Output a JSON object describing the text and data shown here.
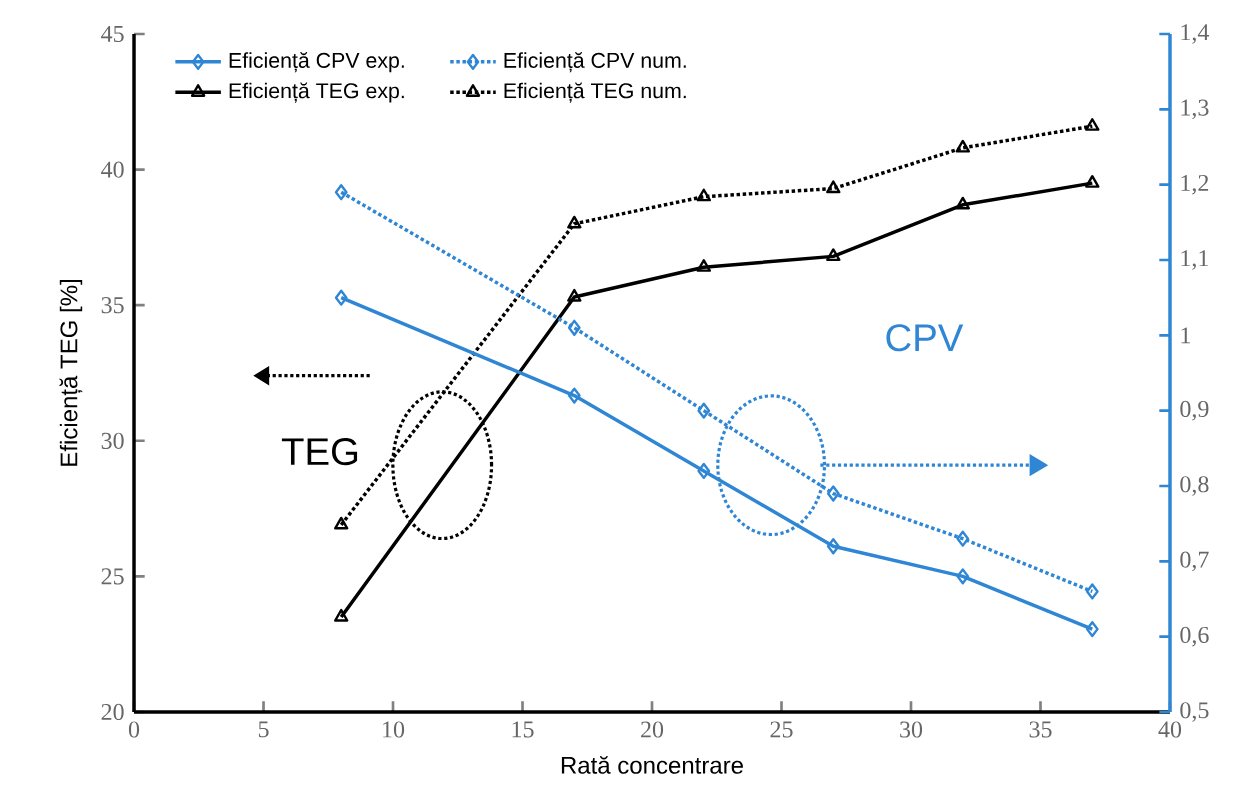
{
  "chart_data": {
    "type": "line",
    "xlabel": "Rată concentrare",
    "ylabel": "Eficiență TEG [%]",
    "x": [
      8,
      17,
      22,
      27,
      32,
      37
    ],
    "xlim": [
      0,
      40
    ],
    "xticks": [
      0,
      5,
      10,
      15,
      20,
      25,
      30,
      35,
      40
    ],
    "ylim": [
      20,
      45
    ],
    "yticks": [
      20,
      25,
      30,
      35,
      40,
      45
    ],
    "y2lim": [
      0.5,
      1.4
    ],
    "y2ticks": [
      {
        "value": 0.5,
        "label": "0,5"
      },
      {
        "value": 0.6,
        "label": "0,6"
      },
      {
        "value": 0.7,
        "label": "0,7"
      },
      {
        "value": 0.8,
        "label": "0,8"
      },
      {
        "value": 0.9,
        "label": "0,9"
      },
      {
        "value": 1,
        "label": "1"
      },
      {
        "value": 1.1,
        "label": "1,1"
      },
      {
        "value": 1.2,
        "label": "1,2"
      },
      {
        "value": 1.3,
        "label": "1,3"
      },
      {
        "value": 1.4,
        "label": "1,4"
      }
    ],
    "series": [
      {
        "name": "Eficiență CPV exp.",
        "color": "#2e86d4",
        "axis": "y2",
        "marker": "diamond",
        "line_style": "solid",
        "values": [
          1.05,
          0.92,
          0.82,
          0.72,
          0.68,
          0.61
        ]
      },
      {
        "name": "Eficiență CPV num.",
        "color": "#2e86d4",
        "axis": "y2",
        "marker": "diamond",
        "line_style": "dotted",
        "values": [
          1.19,
          1.01,
          0.9,
          0.79,
          0.73,
          0.66
        ]
      },
      {
        "name": "Eficiență TEG exp.",
        "color": "#000000",
        "marker": "triangle",
        "line_style": "solid",
        "values": [
          23.5,
          35.3,
          36.4,
          36.8,
          38.7,
          39.5
        ]
      },
      {
        "name": "Eficiență TEG num.",
        "color": "#000000",
        "marker": "triangle",
        "line_style": "dotted",
        "values": [
          26.9,
          38.0,
          39.0,
          39.3,
          40.8,
          41.6
        ]
      }
    ],
    "legend": "top left",
    "grid": false,
    "annotations": [
      "TEG",
      "CPV"
    ]
  }
}
